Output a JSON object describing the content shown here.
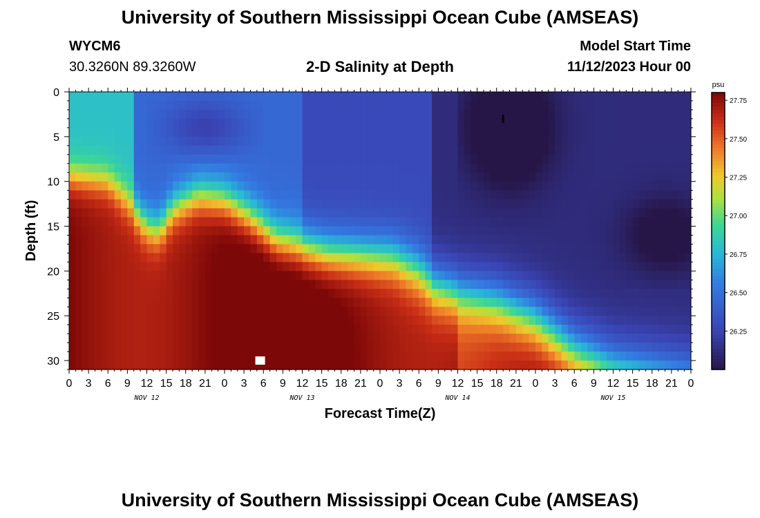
{
  "header": {
    "title": "University of Southern Mississippi Ocean Cube (AMSEAS)",
    "station_id": "WYCM6",
    "coords": "30.3260N  89.3260W",
    "chart_title": "2-D Salinity at Depth",
    "model_start_label": "Model Start Time",
    "model_start_value": "11/12/2023 Hour 00"
  },
  "footer": {
    "title": "University of Southern Mississippi Ocean Cube (AMSEAS)"
  },
  "chart_data": {
    "type": "heatmap",
    "title": "2-D Salinity at Depth",
    "xlabel": "Forecast Time(Z)",
    "ylabel": "Depth (ft)",
    "x_ticks": [
      "0",
      "3",
      "6",
      "9",
      "12",
      "15",
      "18",
      "21",
      "0",
      "3",
      "6",
      "9",
      "12",
      "15",
      "18",
      "21",
      "0",
      "3",
      "6",
      "9",
      "12",
      "15",
      "18",
      "21",
      "0",
      "3",
      "6",
      "9",
      "12",
      "15",
      "18",
      "21",
      "0"
    ],
    "x_range_hours": [
      0,
      96
    ],
    "day_labels": [
      {
        "label": "NOV 12",
        "hour": 12
      },
      {
        "label": "NOV 13",
        "hour": 36
      },
      {
        "label": "NOV 14",
        "hour": 60
      },
      {
        "label": "NOV 15",
        "hour": 84
      }
    ],
    "y_ticks": [
      0,
      5,
      10,
      15,
      20,
      25,
      30
    ],
    "y_range": [
      0,
      31
    ],
    "y_inverted": true,
    "colorbar": {
      "unit": "psu",
      "ticks": [
        27.75,
        27.5,
        27.25,
        27.0,
        26.75,
        26.5,
        26.25
      ],
      "range": [
        26.0,
        27.8
      ]
    },
    "markers": [
      {
        "hour": 67,
        "depth": 3,
        "shape": "bar",
        "color": "#000000"
      },
      {
        "hour": 29.5,
        "depth": 30,
        "shape": "square",
        "color": "#ffffff"
      }
    ],
    "salinity_surface": {
      "interface_depth_by_hour": [
        [
          0,
          9.5
        ],
        [
          6,
          10
        ],
        [
          10,
          13
        ],
        [
          12,
          15
        ],
        [
          14,
          15.5
        ],
        [
          16,
          13
        ],
        [
          20,
          11.5
        ],
        [
          24,
          12
        ],
        [
          28,
          14
        ],
        [
          32,
          16.5
        ],
        [
          40,
          18
        ],
        [
          50,
          18.5
        ],
        [
          54,
          20
        ],
        [
          56,
          21.5
        ],
        [
          60,
          22.5
        ],
        [
          66,
          23.5
        ],
        [
          72,
          25.5
        ],
        [
          78,
          29
        ],
        [
          84,
          31
        ],
        [
          96,
          32.5
        ]
      ],
      "interface_width_ft": [
        2.5,
        4.5
      ],
      "lower_values_psu": [
        27.5,
        27.8
      ],
      "upper_values_psu": [
        26.0,
        26.8
      ],
      "surface_fresh_pool": {
        "hours": [
          15,
          27
        ],
        "depth": [
          3,
          5
        ],
        "value_psu": 26.25
      },
      "surface_fresh_core": {
        "hours": [
          63,
          72
        ],
        "depth": [
          2,
          7
        ],
        "value_psu": 25.95
      }
    }
  }
}
